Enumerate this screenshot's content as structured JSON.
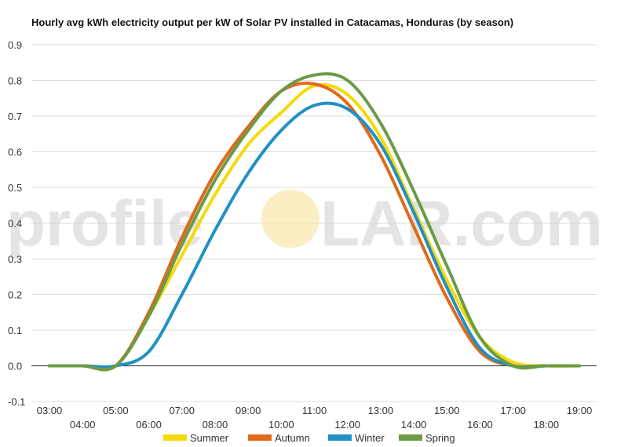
{
  "chart_data": {
    "type": "line",
    "title": "Hourly avg kWh electricity output per kW of Solar PV installed in Catacamas, Honduras (by season)",
    "xlabel": "",
    "ylabel": "",
    "x": [
      "03:00",
      "04:00",
      "05:00",
      "06:00",
      "07:00",
      "08:00",
      "09:00",
      "10:00",
      "11:00",
      "12:00",
      "13:00",
      "14:00",
      "15:00",
      "16:00",
      "17:00",
      "18:00",
      "19:00"
    ],
    "ylim": [
      -0.1,
      0.9
    ],
    "yticks": [
      "-0.1",
      "0.0",
      "0.1",
      "0.2",
      "0.3",
      "0.4",
      "0.5",
      "0.6",
      "0.7",
      "0.8",
      "0.9"
    ],
    "grid": true,
    "legend_position": "bottom",
    "series": [
      {
        "name": "Summer",
        "color": "#f5d90a",
        "values": [
          0.0,
          0.0,
          0.0,
          0.14,
          0.31,
          0.48,
          0.62,
          0.71,
          0.785,
          0.76,
          0.64,
          0.44,
          0.24,
          0.08,
          0.01,
          0.0,
          0.0
        ]
      },
      {
        "name": "Autumn",
        "color": "#e0691a",
        "values": [
          0.0,
          0.0,
          0.0,
          0.15,
          0.36,
          0.54,
          0.67,
          0.77,
          0.79,
          0.735,
          0.59,
          0.39,
          0.19,
          0.04,
          0.0,
          0.0,
          0.0
        ]
      },
      {
        "name": "Winter",
        "color": "#2190c5",
        "values": [
          0.0,
          0.0,
          0.0,
          0.04,
          0.2,
          0.38,
          0.54,
          0.66,
          0.73,
          0.72,
          0.62,
          0.43,
          0.22,
          0.05,
          0.0,
          0.0,
          0.0
        ]
      },
      {
        "name": "Spring",
        "color": "#6b9b47",
        "values": [
          0.0,
          0.0,
          0.0,
          0.14,
          0.34,
          0.52,
          0.66,
          0.77,
          0.815,
          0.8,
          0.68,
          0.49,
          0.28,
          0.08,
          0.0,
          0.0,
          0.0
        ]
      }
    ]
  },
  "watermark": {
    "left": "profile",
    "right": "LAR.com"
  }
}
